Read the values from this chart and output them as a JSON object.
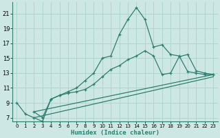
{
  "xlabel": "Humidex (Indice chaleur)",
  "xlim": [
    -0.5,
    23.5
  ],
  "ylim": [
    6.5,
    22.5
  ],
  "yticks": [
    7,
    9,
    11,
    13,
    15,
    17,
    19,
    21
  ],
  "xticks": [
    0,
    1,
    2,
    3,
    4,
    5,
    6,
    7,
    8,
    9,
    10,
    11,
    12,
    13,
    14,
    15,
    16,
    17,
    18,
    19,
    20,
    21,
    22,
    23
  ],
  "bg_color": "#cde8e4",
  "grid_color": "#b0d4ce",
  "line_color": "#2d7d6e",
  "line1_x": [
    0,
    1,
    2,
    3,
    4,
    5,
    6,
    7,
    8,
    9,
    10,
    11,
    12,
    13,
    14,
    15,
    16,
    17,
    18,
    19,
    20,
    21,
    22,
    23
  ],
  "line1_y": [
    9.0,
    7.5,
    7.0,
    6.5,
    9.5,
    10.0,
    10.5,
    11.0,
    12.0,
    13.0,
    15.0,
    15.3,
    18.2,
    20.2,
    21.8,
    20.2,
    16.5,
    16.8,
    15.5,
    15.3,
    13.2,
    13.0,
    12.8,
    12.8
  ],
  "line2_x": [
    2,
    3,
    4,
    5,
    6,
    7,
    8,
    9,
    10,
    11,
    12,
    13,
    14,
    15,
    16,
    17,
    18,
    19,
    20,
    21,
    22,
    23
  ],
  "line2_y": [
    7.8,
    7.0,
    9.5,
    10.0,
    10.3,
    10.5,
    10.8,
    11.5,
    12.5,
    13.5,
    14.0,
    14.8,
    15.3,
    16.0,
    15.3,
    12.8,
    13.0,
    15.2,
    15.5,
    13.3,
    13.0,
    12.8
  ],
  "line3_x": [
    2,
    23
  ],
  "line3_y": [
    7.8,
    12.8
  ],
  "line4_x": [
    2,
    23
  ],
  "line4_y": [
    7.0,
    12.5
  ]
}
